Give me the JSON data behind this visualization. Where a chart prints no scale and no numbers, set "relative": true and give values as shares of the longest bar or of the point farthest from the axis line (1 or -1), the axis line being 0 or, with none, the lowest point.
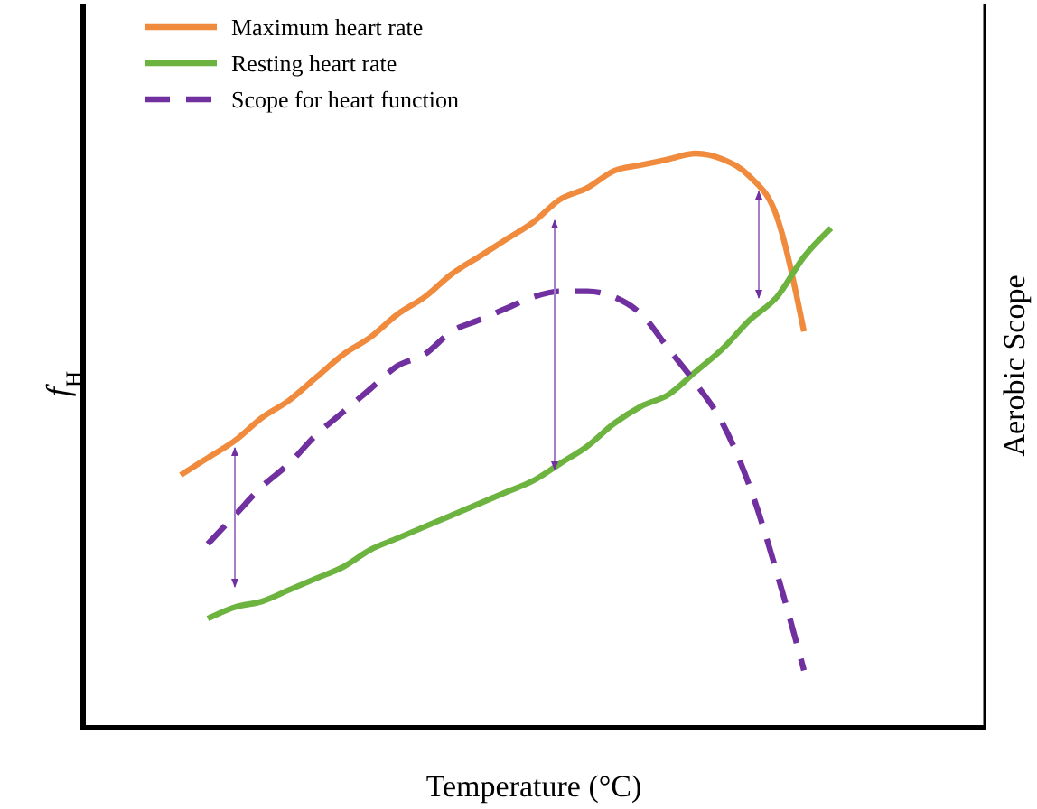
{
  "chart_data": {
    "type": "line",
    "relative": true,
    "xlabel": "Temperature (°C)",
    "ylabel": "f$_{H}$",
    "y2label": "Aerobic Scope",
    "legend": "top left",
    "categories": [
      null,
      null,
      null,
      null,
      null,
      null,
      null,
      null,
      null,
      null,
      null,
      null,
      null,
      null,
      null,
      null,
      null,
      null,
      null,
      null,
      null,
      null,
      null,
      null,
      null
    ],
    "series": [
      {
        "name": "Maximum heart rate",
        "color": "#f08a3c",
        "line_style": "solid",
        "values": [
          0.44,
          0.47,
          0.5,
          0.54,
          0.57,
          0.61,
          0.65,
          0.68,
          0.72,
          0.75,
          0.79,
          0.82,
          0.85,
          0.88,
          0.92,
          0.94,
          0.97,
          0.98,
          0.99,
          1.0,
          0.99,
          0.96,
          0.89,
          0.69,
          null
        ]
      },
      {
        "name": "Resting heart rate",
        "color": "#6db33f",
        "line_style": "solid",
        "values": [
          null,
          0.19,
          0.21,
          0.22,
          0.24,
          0.26,
          0.28,
          0.31,
          0.33,
          0.35,
          0.37,
          0.39,
          0.41,
          0.43,
          0.46,
          0.49,
          0.53,
          0.56,
          0.58,
          0.62,
          0.66,
          0.71,
          0.75,
          0.82,
          0.87
        ]
      },
      {
        "name": "Scope for heart function",
        "color": "#7030a0",
        "line_style": "dashed",
        "values": [
          null,
          0.32,
          0.37,
          0.42,
          0.46,
          0.51,
          0.55,
          0.59,
          0.63,
          0.65,
          0.69,
          0.71,
          0.73,
          0.75,
          0.76,
          0.76,
          0.75,
          0.72,
          0.66,
          0.6,
          0.53,
          0.42,
          0.27,
          0.1,
          null
        ]
      }
    ]
  }
}
